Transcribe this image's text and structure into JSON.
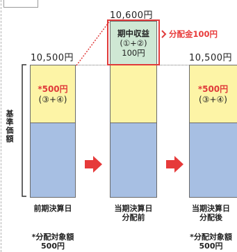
{
  "chart_data": {
    "type": "bar",
    "stacked": true,
    "categories": [
      {
        "line1": "前期決算日",
        "line2": ""
      },
      {
        "line1": "当期決算日",
        "line2": "分配前"
      },
      {
        "line1": "当期決算日",
        "line2": "分配後"
      }
    ],
    "series": [
      {
        "values": [
          10000,
          10000,
          10000
        ],
        "color": "#a7bfe3"
      },
      {
        "values": [
          500,
          500,
          500
        ],
        "color": "#fdf4a6"
      },
      {
        "values": [
          0,
          100,
          0
        ],
        "color": "#cfe8d4"
      }
    ],
    "ylim": [
      0,
      10600
    ],
    "ylabel": [
      "基",
      "準",
      "価",
      "額"
    ],
    "totals": [
      "10,500円",
      "10,600円",
      "10,500円"
    ],
    "segment_labels": [
      {
        "line1": "*500円",
        "line2": "(③+④)"
      },
      {
        "line1": "*500円",
        "line2": "(③+④)"
      }
    ],
    "profit_label": {
      "line1": "期中収益",
      "line2": "(①+②)",
      "line3": "100円"
    },
    "distribution_label": "分配金100円",
    "notes": [
      {
        "line1": "*分配対象額",
        "line2": "500円"
      },
      {
        "line1": "*分配対象額",
        "line2": "500円"
      }
    ],
    "colors": {
      "arrow": "#e63a3a",
      "accent_red": "#e03a3a"
    }
  }
}
